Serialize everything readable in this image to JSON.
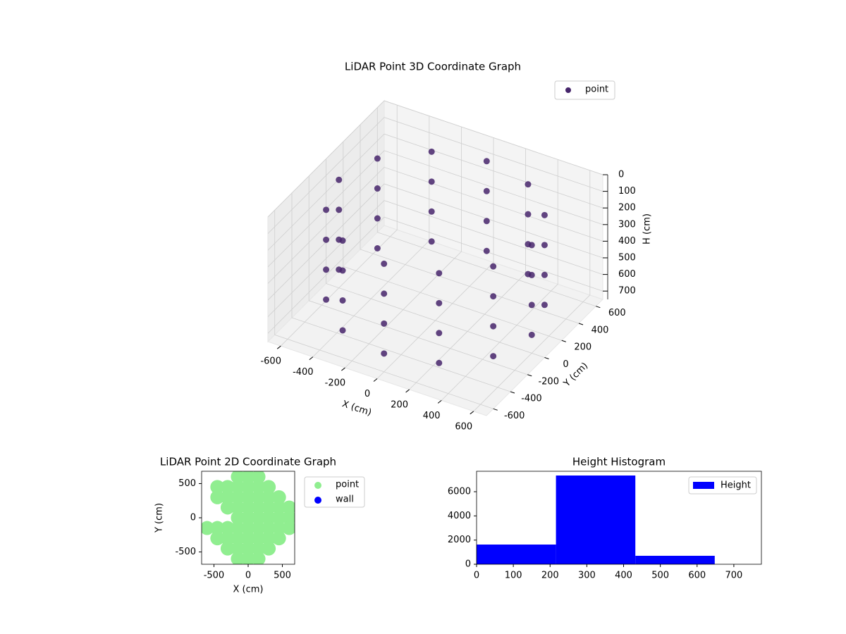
{
  "chart_data": [
    {
      "type": "scatter3d",
      "title": "LiDAR Point 3D Coordinate Graph",
      "xlabel": "X (cm)",
      "ylabel": "Y (cm)",
      "zlabel": "H (cm)",
      "xlim": [
        -680,
        680
      ],
      "ylim": [
        -680,
        680
      ],
      "zlim": [
        0,
        750
      ],
      "z_inverted": true,
      "xticks": [
        -600,
        -400,
        -200,
        0,
        200,
        400,
        600
      ],
      "yticks": [
        -600,
        -400,
        -200,
        0,
        200,
        400,
        600
      ],
      "zticks": [
        0,
        100,
        200,
        300,
        400,
        500,
        600,
        700
      ],
      "grid": true,
      "legend": "upper right",
      "series": [
        {
          "name": "point",
          "color": "#46256b",
          "x": [
            600,
            520,
            300,
            0,
            -300,
            -520,
            -600,
            -520,
            -300,
            0,
            300,
            520,
            600,
            520,
            300,
            0,
            -300,
            -520,
            -600,
            -520,
            -300,
            0,
            300,
            520,
            600,
            520,
            300,
            0,
            -300,
            -520,
            -600,
            -520,
            -300,
            0,
            300,
            520,
            600,
            520,
            300,
            0,
            -300,
            -520,
            -600,
            -520,
            -300,
            0,
            300,
            520
          ],
          "y": [
            0,
            300,
            520,
            600,
            520,
            300,
            0,
            -300,
            -520,
            -600,
            -520,
            -300,
            0,
            300,
            520,
            600,
            520,
            300,
            0,
            -300,
            -520,
            -600,
            -520,
            -300,
            0,
            300,
            520,
            600,
            520,
            300,
            0,
            -300,
            -520,
            -600,
            -520,
            -300,
            0,
            300,
            520,
            600,
            520,
            300,
            0,
            -300,
            -520,
            -600,
            -520,
            -300
          ],
          "z": [
            100,
            100,
            100,
            100,
            100,
            100,
            100,
            100,
            100,
            100,
            100,
            100,
            280,
            280,
            280,
            280,
            280,
            280,
            280,
            280,
            280,
            280,
            280,
            280,
            460,
            460,
            460,
            460,
            460,
            460,
            460,
            460,
            460,
            460,
            460,
            460,
            640,
            640,
            640,
            640,
            640,
            640,
            640,
            640,
            640,
            640,
            640,
            640
          ]
        }
      ]
    },
    {
      "type": "scatter",
      "title": "LiDAR Point 2D Coordinate Graph",
      "xlabel": "X (cm)",
      "ylabel": "Y (cm)",
      "xlim": [
        -680,
        680
      ],
      "ylim": [
        -680,
        680
      ],
      "xticks": [
        -500,
        0,
        500
      ],
      "yticks": [
        -500,
        0,
        500
      ],
      "legend": "outside right",
      "series": [
        {
          "name": "point",
          "color": "#90ee90",
          "x": [
            -150,
            0,
            150,
            -450,
            -300,
            -150,
            0,
            150,
            300,
            -450,
            -300,
            -150,
            0,
            150,
            300,
            450,
            -300,
            -150,
            0,
            150,
            300,
            450,
            600,
            -150,
            0,
            150,
            300,
            450,
            600,
            -600,
            -450,
            -300,
            -150,
            0,
            150,
            300,
            450,
            600,
            -450,
            -300,
            -150,
            0,
            150,
            300,
            450,
            -300,
            -150,
            0,
            150,
            300,
            -150,
            0,
            150
          ],
          "y": [
            600,
            600,
            600,
            450,
            450,
            450,
            450,
            450,
            450,
            300,
            300,
            300,
            300,
            300,
            300,
            300,
            150,
            150,
            150,
            150,
            150,
            150,
            150,
            0,
            0,
            0,
            0,
            0,
            0,
            -150,
            -150,
            -150,
            -150,
            -150,
            -150,
            -150,
            -150,
            -150,
            -300,
            -300,
            -300,
            -300,
            -300,
            -300,
            -300,
            -450,
            -450,
            -450,
            -450,
            -450,
            -600,
            -600,
            -600
          ]
        },
        {
          "name": "wall",
          "color": "#0000ff",
          "x": [],
          "y": []
        }
      ]
    },
    {
      "type": "histogram",
      "title": "Height Histogram",
      "bins": [
        0,
        216,
        432,
        648
      ],
      "xlim": [
        0,
        775
      ],
      "ylim": [
        0,
        7690
      ],
      "xticks": [
        0,
        100,
        200,
        300,
        400,
        500,
        600,
        700
      ],
      "yticks": [
        0,
        2000,
        4000,
        6000
      ],
      "legend": "upper right",
      "series": [
        {
          "name": "Height",
          "color": "#0000ff",
          "values": [
            1630,
            7340,
            700
          ]
        }
      ]
    }
  ]
}
